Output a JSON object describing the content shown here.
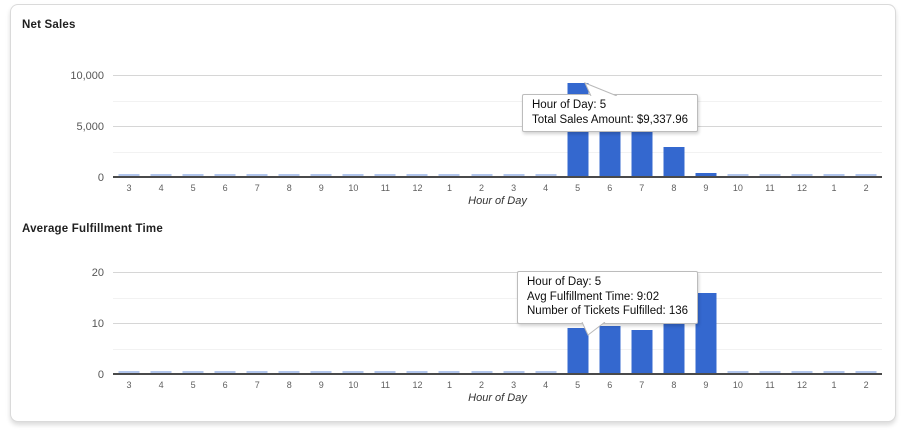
{
  "page": {
    "background_color": "#ffffff",
    "card_border_color": "#dadada"
  },
  "chart_data": [
    {
      "type": "bar",
      "title": "Net Sales",
      "xlabel": "Hour of Day",
      "ylabel": "",
      "categories": [
        "3",
        "4",
        "5",
        "6",
        "7",
        "8",
        "9",
        "10",
        "11",
        "12",
        "1",
        "2",
        "3",
        "4",
        "5",
        "6",
        "7",
        "8",
        "9",
        "10",
        "11",
        "12",
        "1",
        "2"
      ],
      "values": [
        0,
        0,
        0,
        0,
        0,
        0,
        0,
        0,
        0,
        0,
        0,
        0,
        0,
        0,
        9337.96,
        6400,
        6100,
        2900,
        300,
        0,
        0,
        0,
        0,
        0
      ],
      "ylim": [
        0,
        10000
      ],
      "yticks": [
        {
          "value": 0,
          "label": "0"
        },
        {
          "value": 5000,
          "label": "5,000"
        },
        {
          "value": 10000,
          "label": "10,000"
        }
      ],
      "minor_gridlines": [
        2500,
        7500
      ],
      "grid": "on",
      "legend": "none",
      "bar_color": "#3468cf",
      "zero_bar_color": "rgba(52,104,207,0.38)",
      "tooltip": {
        "lines": [
          "Hour of Day: 5",
          "Total Sales Amount: $9,337.96"
        ]
      }
    },
    {
      "type": "bar",
      "title": "Average Fulfillment Time",
      "xlabel": "Hour of Day",
      "ylabel": "",
      "categories": [
        "3",
        "4",
        "5",
        "6",
        "7",
        "8",
        "9",
        "10",
        "11",
        "12",
        "1",
        "2",
        "3",
        "4",
        "5",
        "6",
        "7",
        "8",
        "9",
        "10",
        "11",
        "12",
        "1",
        "2"
      ],
      "values": [
        0,
        0,
        0,
        0,
        0,
        0,
        0,
        0,
        0,
        0,
        0,
        0,
        0,
        0,
        9.03,
        9.4,
        8.7,
        11.8,
        16,
        0,
        0,
        0,
        0,
        0
      ],
      "ylim": [
        0,
        20
      ],
      "yticks": [
        {
          "value": 0,
          "label": "0"
        },
        {
          "value": 10,
          "label": "10"
        },
        {
          "value": 20,
          "label": "20"
        }
      ],
      "minor_gridlines": [
        5,
        15
      ],
      "grid": "on",
      "legend": "none",
      "bar_color": "#3468cf",
      "zero_bar_color": "rgba(52,104,207,0.38)",
      "tooltip": {
        "lines": [
          "Hour of Day: 5",
          "Avg Fulfillment Time: 9:02",
          "Number of Tickets Fulfilled: 136"
        ]
      }
    }
  ]
}
